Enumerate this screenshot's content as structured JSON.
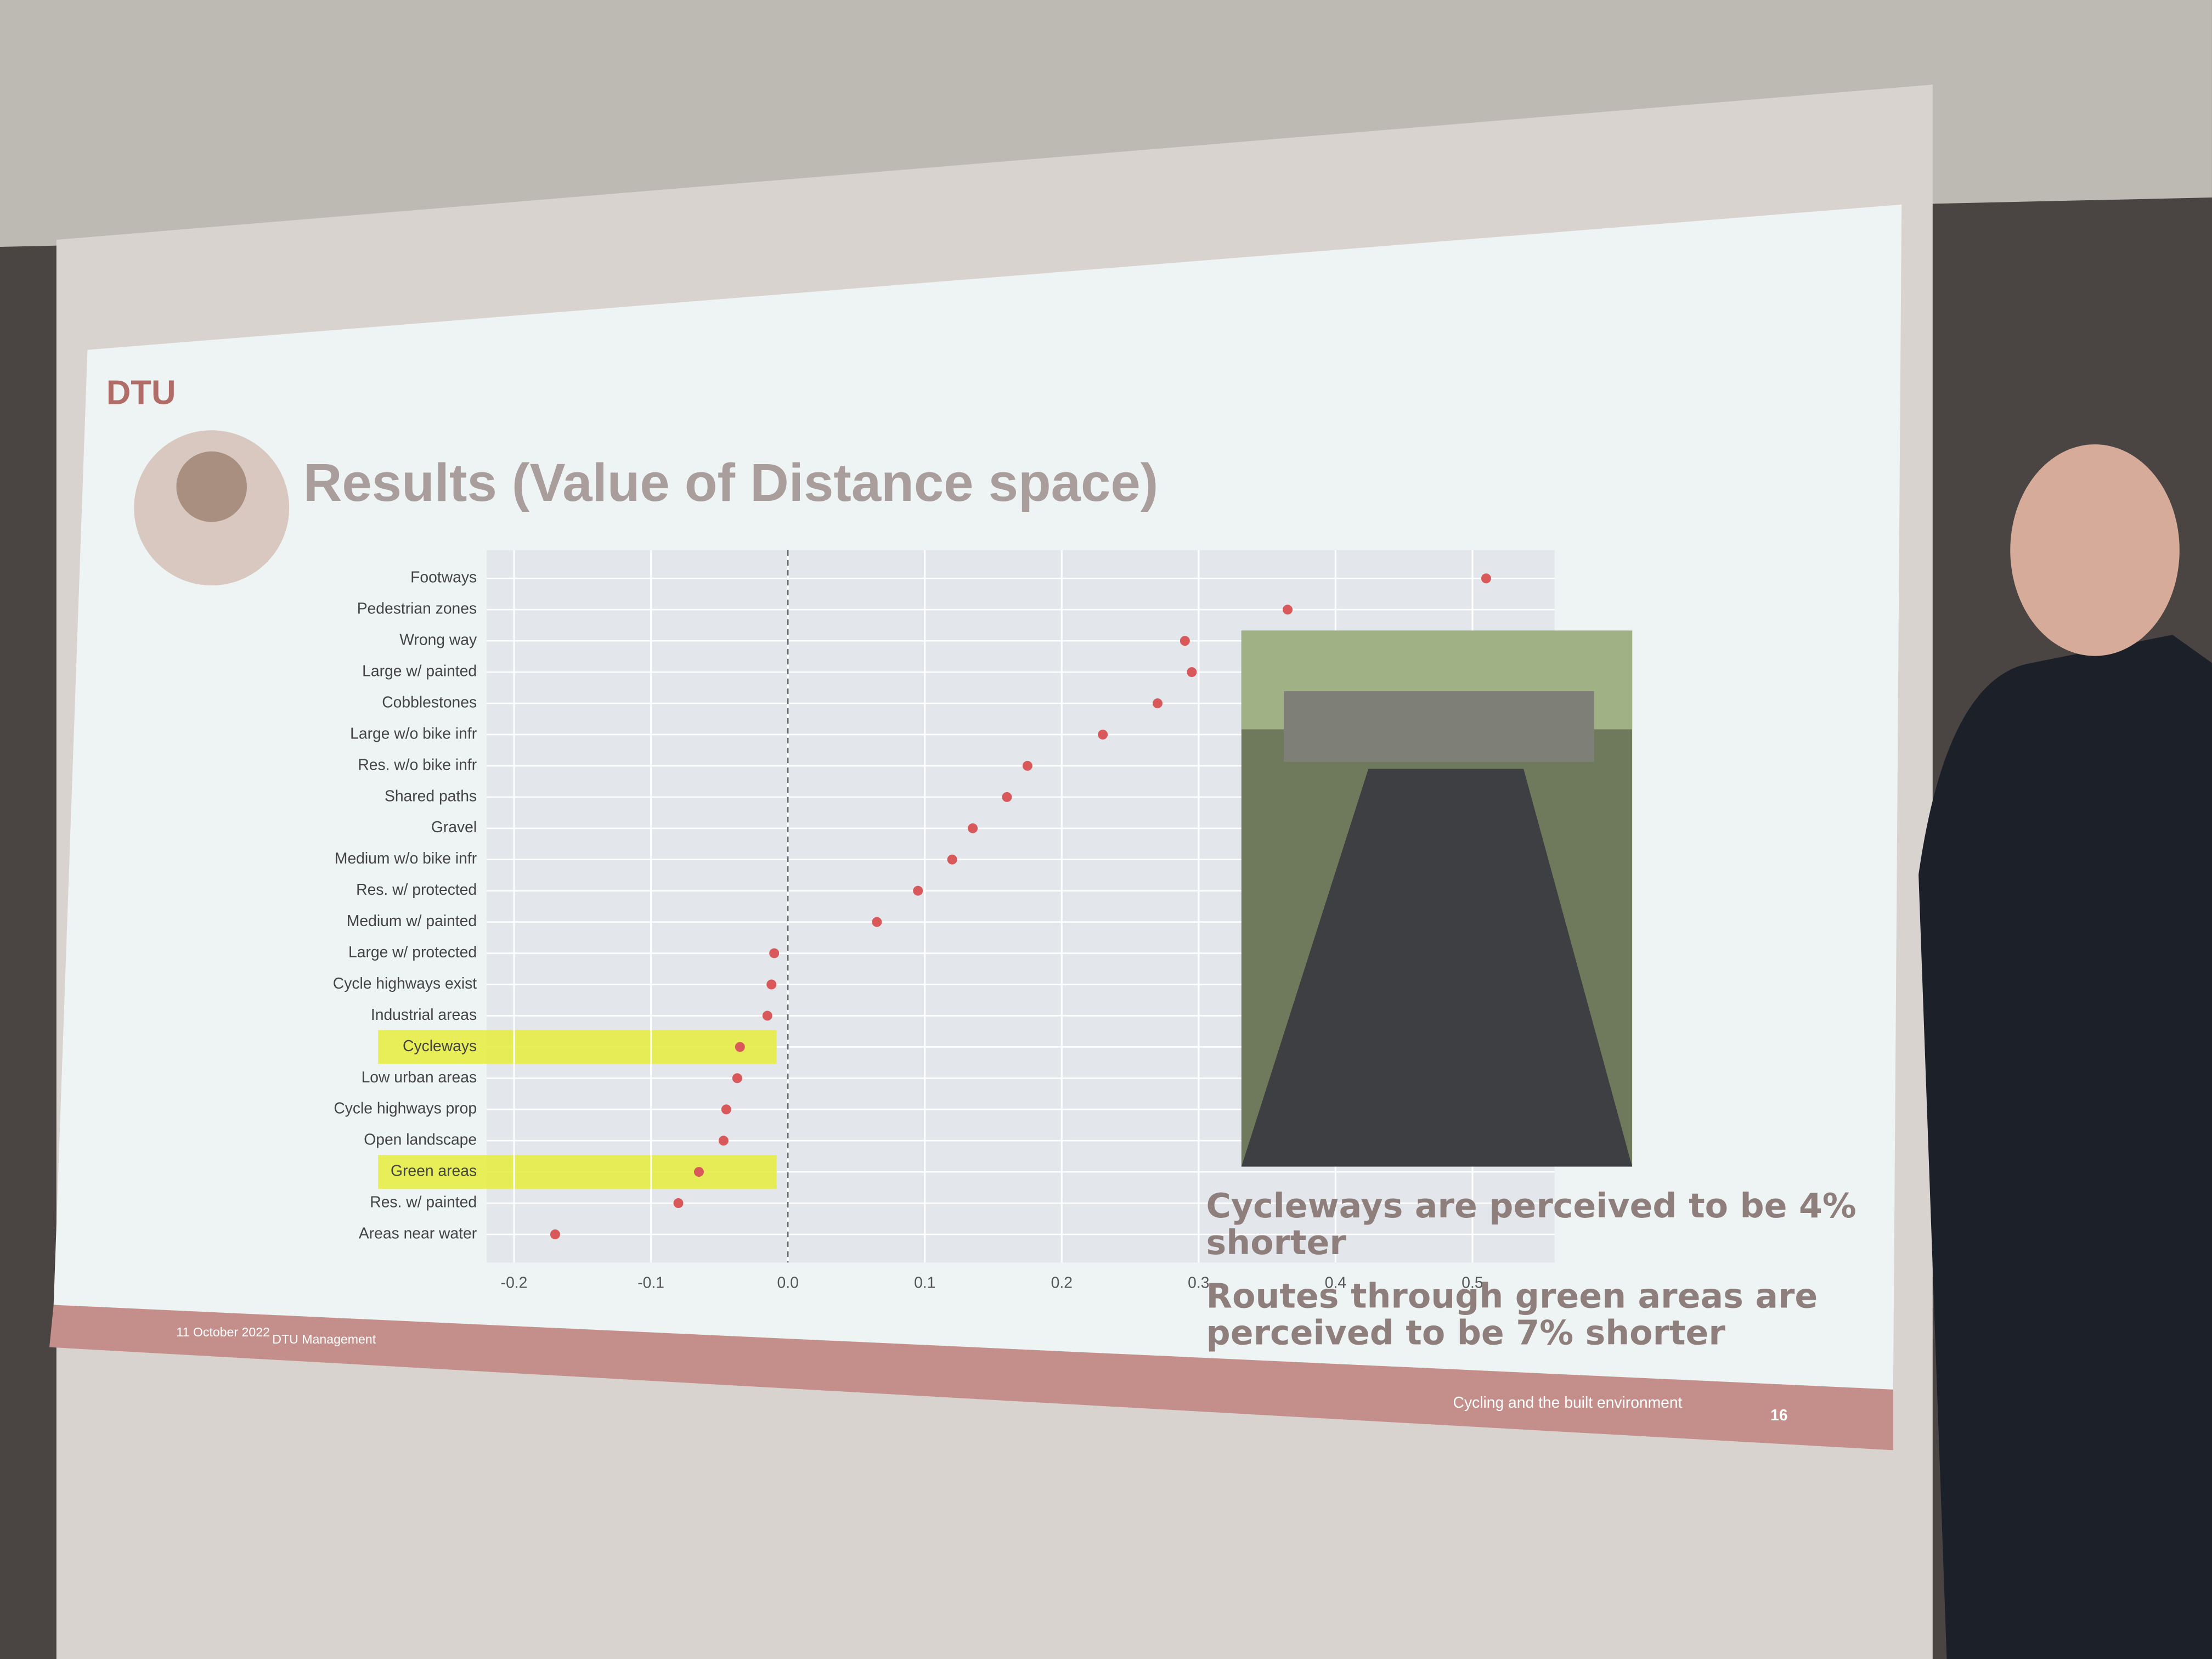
{
  "slide": {
    "logo": "DTU",
    "title": "Results (Value of Distance space)",
    "date": "11 October 2022",
    "department": "DTU Management",
    "footer_title": "Cycling and the built environment",
    "page_number": "16",
    "bullets": [
      "Cycleways are perceived to be 4% shorter",
      "Routes through green areas are perceived to be 7% shorter"
    ]
  },
  "chart_data": {
    "type": "dotplot",
    "categories": [
      "Footways",
      "Pedestrian zones",
      "Wrong way",
      "Large w/ painted",
      "Cobblestones",
      "Large w/o bike infr",
      "Res. w/o bike infr",
      "Shared paths",
      "Gravel",
      "Medium w/o bike infr",
      "Res. w/ protected",
      "Medium w/ painted",
      "Large w/ protected",
      "Cycle highways exist",
      "Industrial areas",
      "Cycleways",
      "Low urban areas",
      "Cycle highways prop",
      "Open landscape",
      "Green areas",
      "Res. w/ painted",
      "Areas near water"
    ],
    "values": [
      0.51,
      0.365,
      0.29,
      0.295,
      0.27,
      0.23,
      0.175,
      0.16,
      0.135,
      0.12,
      0.095,
      0.065,
      -0.01,
      -0.012,
      -0.015,
      -0.035,
      -0.037,
      -0.045,
      -0.047,
      -0.065,
      -0.08,
      -0.17
    ],
    "color": "#d9595b",
    "highlighted": [
      15,
      19
    ],
    "highlight_color": "#e6ec3c",
    "xlim": [
      -0.22,
      0.56
    ],
    "xticks": [
      -0.2,
      -0.1,
      {
        "value": 0,
        "label": "0.0"
      },
      0.1,
      0.2,
      0.3,
      0.4,
      0.5
    ],
    "grid": true
  }
}
